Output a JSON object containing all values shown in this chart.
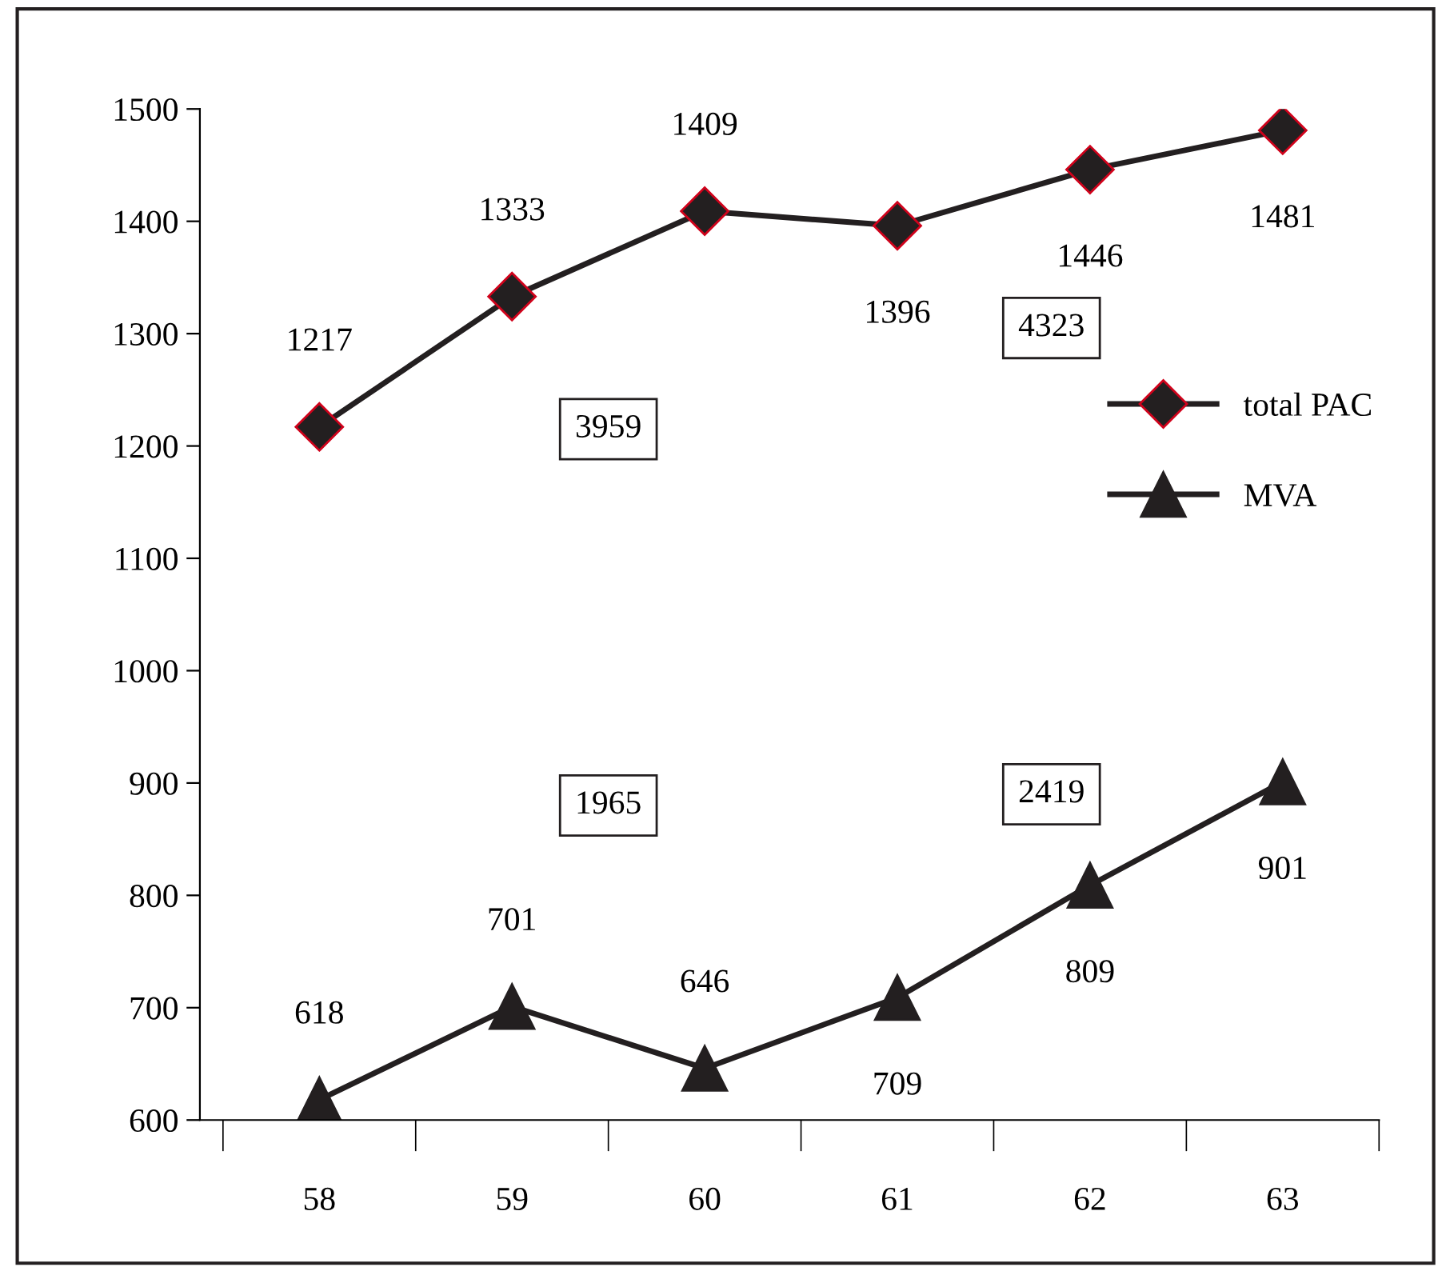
{
  "chart_data": {
    "type": "line",
    "categories": [
      "58",
      "59",
      "60",
      "61",
      "62",
      "63"
    ],
    "series": [
      {
        "name": "total PAC",
        "color": "#231f20",
        "marker": "diamond",
        "values": [
          1217,
          1333,
          1409,
          1396,
          1446,
          1481
        ]
      },
      {
        "name": "MVA",
        "color": "#231f20",
        "marker": "triangle",
        "values": [
          618,
          701,
          646,
          709,
          809,
          901
        ]
      }
    ],
    "ylim": [
      600,
      1500
    ],
    "yticks": [
      600,
      700,
      800,
      900,
      1000,
      1100,
      1200,
      1300,
      1400,
      1500
    ],
    "data_labels": true,
    "grid": false,
    "legend": "right",
    "line_style": "solid",
    "annotations": [
      "3959",
      "4323",
      "1965",
      "2419"
    ]
  }
}
